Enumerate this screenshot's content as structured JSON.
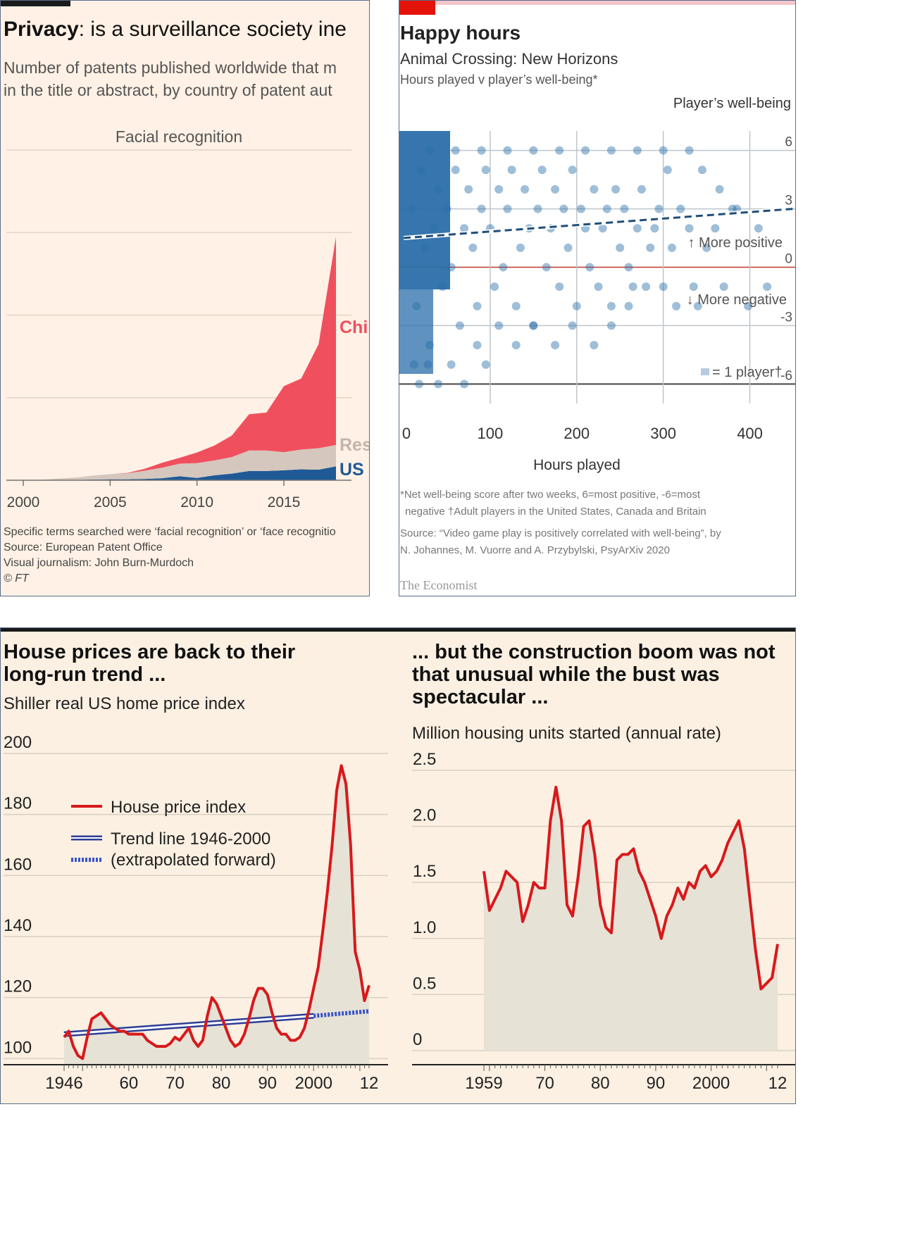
{
  "colors": {
    "ft_bg": "#fff1e5",
    "china": "#f0505e",
    "rest": "#d5c7bd",
    "us": "#1f5a96",
    "econ_red": "#e3120b",
    "dot": "#2b6ea9",
    "house_red": "#d7191c",
    "house_bg": "#fbf0e2",
    "trend_blue": "#2c3e97",
    "fill_grey": "#e9e6da"
  },
  "ft": {
    "title_bold": "Privacy",
    "title_rest": ": is a surveillance society ine",
    "subtitle_line1": "Number of patents published worldwide that m",
    "subtitle_line2": "in the title or abstract, by country of patent aut",
    "footnote1": "Specific terms searched were ‘facial recognition’ or ‘face recognitio",
    "footnote2": "Source: European Patent Office",
    "footnote3": "Visual journalism: John Burn-Murdoch",
    "footnote4": "© FT"
  },
  "econ": {
    "title": "Happy hours",
    "subtitle": "Animal Crossing: New Horizons",
    "subtitle2": "Hours played v player’s well-being*",
    "note_line1": "*Net well-being score after two weeks, 6=most positive, -6=most",
    "note_line2": "negative  †Adult players in the United States, Canada and Britain",
    "source_line1": "Source: “Video game play is positively correlated with well-being”, by",
    "source_line2": "N. Johannes, M. Vuorre and A. Przybylski, PsyArXiv 2020",
    "brand": "The Economist"
  },
  "house": {
    "left_title1": "House prices are back to their",
    "left_title2": "long-run trend ...",
    "left_subtitle": "Shiller real US home price index",
    "right_title1": "... but the construction boom was not",
    "right_title2": "that unusual while the bust was",
    "right_title3": "spectacular ...",
    "right_subtitle": "Million housing units started (annual rate)"
  },
  "chart_data": [
    {
      "type": "area",
      "title": "Facial recognition",
      "x": [
        2000,
        2001,
        2002,
        2003,
        2004,
        2005,
        2006,
        2007,
        2008,
        2009,
        2010,
        2011,
        2012,
        2013,
        2014,
        2015,
        2016,
        2017,
        2018
      ],
      "series": [
        {
          "name": "US",
          "values": [
            0,
            0,
            1,
            1,
            2,
            3,
            3,
            4,
            6,
            12,
            7,
            15,
            20,
            28,
            28,
            30,
            33,
            32,
            42
          ]
        },
        {
          "name": "Rest",
          "values": [
            0,
            1,
            4,
            7,
            12,
            15,
            18,
            25,
            32,
            38,
            45,
            45,
            50,
            62,
            62,
            55,
            60,
            65,
            65
          ]
        },
        {
          "name": "China",
          "values": [
            0,
            0,
            0,
            0,
            0,
            0,
            1,
            6,
            15,
            18,
            32,
            45,
            65,
            110,
            115,
            200,
            215,
            315,
            630
          ]
        }
      ],
      "xticks": [
        "2000",
        "2005",
        "2010",
        "2015"
      ],
      "ylim": [
        0,
        1000
      ],
      "labels": {
        "china": "Chi",
        "rest": "Res",
        "us": "US"
      }
    },
    {
      "type": "scatter",
      "title": "Happy hours",
      "xlabel": "Hours played",
      "ylabel": "Player’s well-being",
      "xlim": [
        0,
        450
      ],
      "ylim": [
        -7,
        7
      ],
      "xticks": [
        "0",
        "100",
        "200",
        "300",
        "400"
      ],
      "yticks": [
        "6",
        "3",
        "0",
        "-3",
        "-6"
      ],
      "trend": {
        "x": [
          0,
          450
        ],
        "y": [
          1.5,
          3.0
        ]
      },
      "annotations": [
        "↑ More positive",
        "↓ More negative",
        "= 1 player†"
      ],
      "points": [
        [
          10,
          3
        ],
        [
          15,
          -2
        ],
        [
          20,
          5
        ],
        [
          25,
          1
        ],
        [
          30,
          -4
        ],
        [
          35,
          2
        ],
        [
          40,
          4
        ],
        [
          45,
          -1
        ],
        [
          50,
          3
        ],
        [
          55,
          0
        ],
        [
          60,
          5
        ],
        [
          65,
          -3
        ],
        [
          70,
          2
        ],
        [
          75,
          4
        ],
        [
          80,
          1
        ],
        [
          85,
          -2
        ],
        [
          90,
          3
        ],
        [
          95,
          5
        ],
        [
          100,
          2
        ],
        [
          105,
          -1
        ],
        [
          110,
          4
        ],
        [
          115,
          0
        ],
        [
          120,
          3
        ],
        [
          125,
          5
        ],
        [
          130,
          -2
        ],
        [
          135,
          1
        ],
        [
          140,
          4
        ],
        [
          145,
          2
        ],
        [
          150,
          -3
        ],
        [
          155,
          3
        ],
        [
          160,
          5
        ],
        [
          165,
          0
        ],
        [
          170,
          2
        ],
        [
          175,
          4
        ],
        [
          180,
          -1
        ],
        [
          185,
          3
        ],
        [
          190,
          1
        ],
        [
          195,
          5
        ],
        [
          200,
          -2
        ],
        [
          205,
          3
        ],
        [
          210,
          2
        ],
        [
          215,
          0
        ],
        [
          220,
          4
        ],
        [
          225,
          -1
        ],
        [
          230,
          2
        ],
        [
          235,
          3
        ],
        [
          240,
          -2
        ],
        [
          245,
          4
        ],
        [
          250,
          1
        ],
        [
          255,
          3
        ],
        [
          260,
          0
        ],
        [
          265,
          -1
        ],
        [
          270,
          2
        ],
        [
          275,
          4
        ],
        [
          280,
          -1
        ],
        [
          285,
          1
        ],
        [
          290,
          2
        ],
        [
          295,
          3
        ],
        [
          300,
          -1
        ],
        [
          305,
          5
        ],
        [
          310,
          1
        ],
        [
          315,
          -2
        ],
        [
          320,
          3
        ],
        [
          330,
          2
        ],
        [
          335,
          -1
        ],
        [
          340,
          -2
        ],
        [
          350,
          1
        ],
        [
          360,
          2
        ],
        [
          370,
          -1
        ],
        [
          385,
          3
        ],
        [
          398,
          -2
        ],
        [
          410,
          2
        ],
        [
          420,
          -1
        ],
        [
          12,
          -5
        ],
        [
          18,
          -6
        ],
        [
          28,
          -5
        ],
        [
          40,
          -6
        ],
        [
          55,
          -5
        ],
        [
          70,
          -6
        ],
        [
          85,
          -4
        ],
        [
          95,
          -5
        ],
        [
          110,
          -3
        ],
        [
          130,
          -4
        ],
        [
          150,
          -3
        ],
        [
          175,
          -4
        ],
        [
          195,
          -3
        ],
        [
          220,
          -4
        ],
        [
          240,
          -3
        ],
        [
          260,
          -2
        ],
        [
          30,
          6
        ],
        [
          60,
          6
        ],
        [
          90,
          6
        ],
        [
          120,
          6
        ],
        [
          150,
          6
        ],
        [
          180,
          6
        ],
        [
          210,
          6
        ],
        [
          240,
          6
        ],
        [
          270,
          6
        ],
        [
          300,
          6
        ],
        [
          330,
          6
        ],
        [
          345,
          5
        ],
        [
          365,
          4
        ],
        [
          380,
          3
        ]
      ]
    },
    {
      "type": "line",
      "title": "House prices are back to their long-run trend ...",
      "series": [
        {
          "name": "House price index",
          "x": [
            1946,
            1947,
            1948,
            1949,
            1950,
            1951,
            1952,
            1953,
            1954,
            1955,
            1956,
            1957,
            1958,
            1959,
            1960,
            1961,
            1962,
            1963,
            1964,
            1965,
            1966,
            1967,
            1968,
            1969,
            1970,
            1971,
            1972,
            1973,
            1974,
            1975,
            1976,
            1977,
            1978,
            1979,
            1980,
            1981,
            1982,
            1983,
            1984,
            1985,
            1986,
            1987,
            1988,
            1989,
            1990,
            1991,
            1992,
            1993,
            1994,
            1995,
            1996,
            1997,
            1998,
            1999,
            2000,
            2001,
            2002,
            2003,
            2004,
            2005,
            2006,
            2007,
            2008,
            2009,
            2010,
            2011,
            2012
          ],
          "values": [
            107,
            109,
            104,
            101,
            100,
            107,
            113,
            114,
            115,
            113,
            111,
            110,
            109,
            109,
            108,
            108,
            108,
            108,
            106,
            105,
            104,
            104,
            104,
            105,
            107,
            106,
            108,
            110,
            106,
            104,
            106,
            114,
            120,
            118,
            114,
            110,
            106,
            104,
            105,
            108,
            113,
            119,
            123,
            123,
            121,
            115,
            110,
            108,
            108,
            106,
            106,
            107,
            110,
            116,
            123,
            130,
            142,
            155,
            170,
            188,
            196,
            190,
            170,
            135,
            129,
            119,
            124
          ]
        },
        {
          "name": "Trend line 1946-2000",
          "x": [
            1946,
            2000
          ],
          "values": [
            108,
            114
          ]
        },
        {
          "name": "(extrapolated forward)",
          "x": [
            2000,
            2012
          ],
          "values": [
            114,
            115.5
          ]
        }
      ],
      "yticks": [
        "100",
        "120",
        "140",
        "160",
        "180",
        "200"
      ],
      "xticks": [
        "1946",
        "60",
        "70",
        "80",
        "90",
        "2000",
        "12"
      ],
      "ylim": [
        98,
        200
      ],
      "legend": [
        "House price index",
        "Trend line 1946-2000",
        "(extrapolated forward)"
      ]
    },
    {
      "type": "area",
      "title": "... but the construction boom was not that unusual while the bust was spectacular ...",
      "x": [
        1959,
        1960,
        1961,
        1962,
        1963,
        1964,
        1965,
        1966,
        1967,
        1968,
        1969,
        1970,
        1971,
        1972,
        1973,
        1974,
        1975,
        1976,
        1977,
        1978,
        1979,
        1980,
        1981,
        1982,
        1983,
        1984,
        1985,
        1986,
        1987,
        1988,
        1989,
        1990,
        1991,
        1992,
        1993,
        1994,
        1995,
        1996,
        1997,
        1998,
        1999,
        2000,
        2001,
        2002,
        2003,
        2004,
        2005,
        2006,
        2007,
        2008,
        2009,
        2010,
        2011,
        2012
      ],
      "values": [
        1.6,
        1.25,
        1.35,
        1.45,
        1.6,
        1.55,
        1.5,
        1.15,
        1.3,
        1.5,
        1.45,
        1.45,
        2.05,
        2.35,
        2.05,
        1.3,
        1.2,
        1.55,
        2.0,
        2.05,
        1.75,
        1.3,
        1.1,
        1.05,
        1.7,
        1.75,
        1.75,
        1.8,
        1.6,
        1.5,
        1.35,
        1.2,
        1.0,
        1.2,
        1.3,
        1.45,
        1.35,
        1.5,
        1.45,
        1.6,
        1.65,
        1.55,
        1.6,
        1.7,
        1.85,
        1.95,
        2.05,
        1.8,
        1.35,
        0.9,
        0.55,
        0.6,
        0.65,
        0.95
      ],
      "yticks": [
        "0",
        "0.5",
        "1.0",
        "1.5",
        "2.0",
        "2.5"
      ],
      "xticks": [
        "1959",
        "70",
        "80",
        "90",
        "2000",
        "12"
      ],
      "ylim": [
        0,
        2.6
      ]
    }
  ]
}
